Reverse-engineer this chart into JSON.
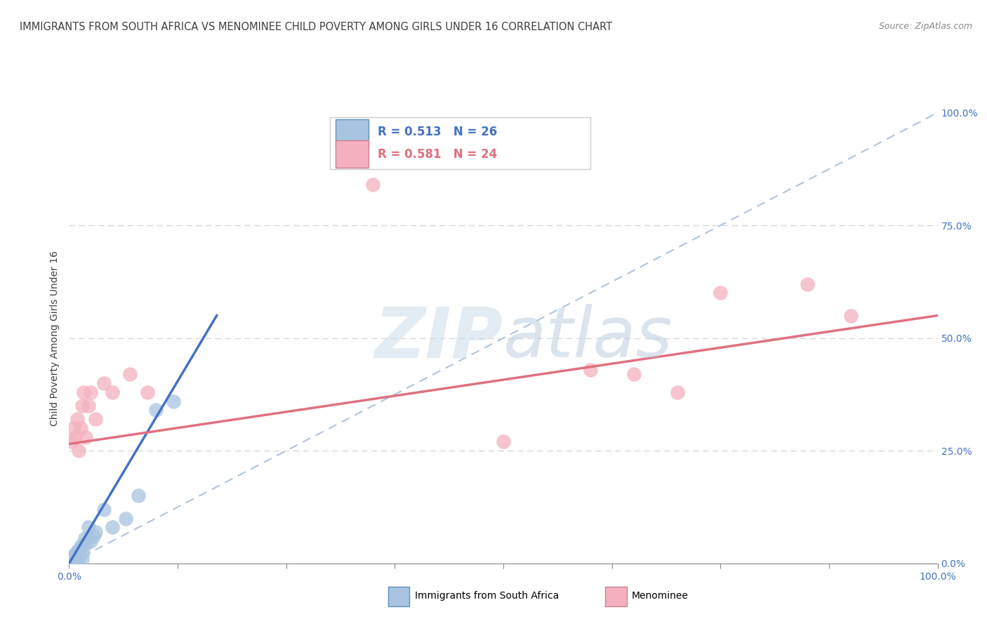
{
  "title": "IMMIGRANTS FROM SOUTH AFRICA VS MENOMINEE CHILD POVERTY AMONG GIRLS UNDER 16 CORRELATION CHART",
  "source": "Source: ZipAtlas.com",
  "ylabel": "Child Poverty Among Girls Under 16",
  "xlim": [
    0,
    1
  ],
  "ylim": [
    0,
    1
  ],
  "legend_r1": "R = 0.513",
  "legend_n1": "N = 26",
  "legend_r2": "R = 0.581",
  "legend_n2": "N = 24",
  "blue_color": "#a8c4e0",
  "pink_color": "#f4b0be",
  "blue_line_color": "#4472c4",
  "pink_line_color": "#e07080",
  "dashed_line_color": "#b0c4de",
  "watermark_color": "#d0dce8",
  "background_color": "#ffffff",
  "grid_color": "#d8d8d8",
  "title_color": "#404040",
  "axis_color": "#888888",
  "blue_scatter": [
    [
      0.003,
      0.005
    ],
    [
      0.004,
      0.01
    ],
    [
      0.005,
      0.015
    ],
    [
      0.006,
      0.02
    ],
    [
      0.007,
      0.008
    ],
    [
      0.008,
      0.018
    ],
    [
      0.009,
      0.025
    ],
    [
      0.01,
      0.03
    ],
    [
      0.011,
      0.012
    ],
    [
      0.012,
      0.02
    ],
    [
      0.013,
      0.035
    ],
    [
      0.014,
      0.04
    ],
    [
      0.015,
      0.01
    ],
    [
      0.016,
      0.025
    ],
    [
      0.018,
      0.055
    ],
    [
      0.02,
      0.045
    ],
    [
      0.022,
      0.08
    ],
    [
      0.025,
      0.05
    ],
    [
      0.028,
      0.06
    ],
    [
      0.03,
      0.07
    ],
    [
      0.04,
      0.12
    ],
    [
      0.05,
      0.08
    ],
    [
      0.065,
      0.1
    ],
    [
      0.08,
      0.15
    ],
    [
      0.1,
      0.34
    ],
    [
      0.12,
      0.36
    ]
  ],
  "pink_scatter": [
    [
      0.003,
      0.27
    ],
    [
      0.005,
      0.3
    ],
    [
      0.007,
      0.28
    ],
    [
      0.009,
      0.32
    ],
    [
      0.011,
      0.25
    ],
    [
      0.013,
      0.3
    ],
    [
      0.015,
      0.35
    ],
    [
      0.017,
      0.38
    ],
    [
      0.019,
      0.28
    ],
    [
      0.022,
      0.35
    ],
    [
      0.025,
      0.38
    ],
    [
      0.03,
      0.32
    ],
    [
      0.04,
      0.4
    ],
    [
      0.05,
      0.38
    ],
    [
      0.07,
      0.42
    ],
    [
      0.09,
      0.38
    ],
    [
      0.5,
      0.27
    ],
    [
      0.6,
      0.43
    ],
    [
      0.65,
      0.42
    ],
    [
      0.7,
      0.38
    ],
    [
      0.75,
      0.6
    ],
    [
      0.85,
      0.62
    ],
    [
      0.9,
      0.55
    ],
    [
      0.35,
      0.84
    ]
  ],
  "blue_line_x": [
    0.0,
    0.17
  ],
  "blue_line_y": [
    0.0,
    0.55
  ],
  "pink_line_x": [
    0.0,
    1.0
  ],
  "pink_line_y": [
    0.265,
    0.55
  ],
  "title_fontsize": 10.5,
  "source_fontsize": 9,
  "label_fontsize": 10,
  "tick_fontsize": 10,
  "watermark_fontsize": 72
}
